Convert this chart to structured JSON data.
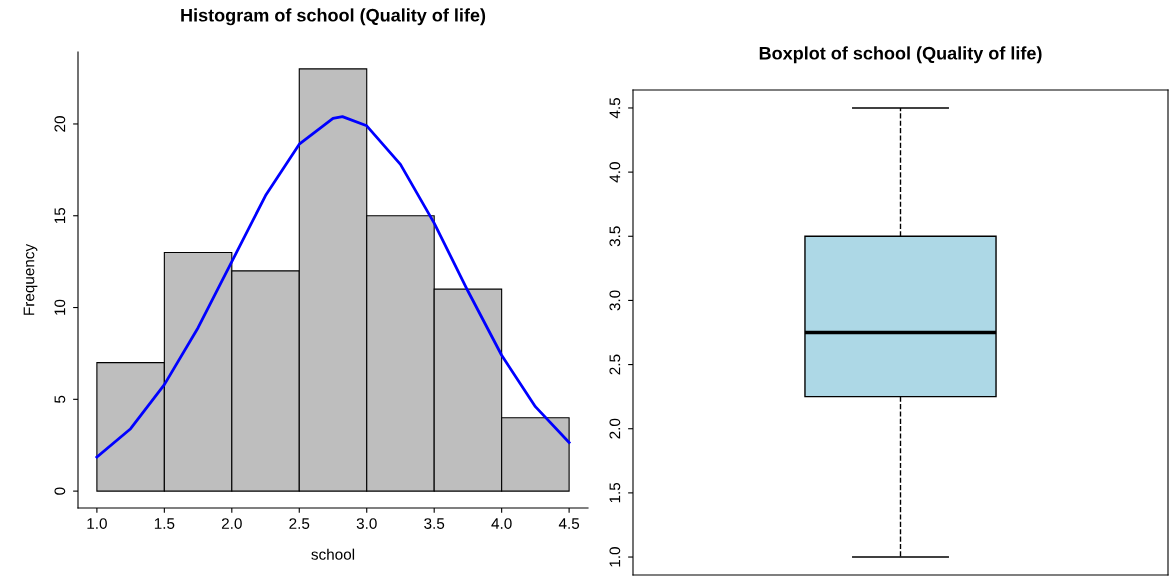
{
  "chart_data": [
    {
      "type": "histogram",
      "title": "Histogram of school (Quality of life)",
      "xlabel": "school",
      "ylabel": "Frequency",
      "bins": [
        1.0,
        1.5,
        2.0,
        2.5,
        3.0,
        3.5,
        4.0,
        4.5
      ],
      "values": [
        7,
        13,
        12,
        23,
        15,
        11,
        4
      ],
      "color": "#bebebe",
      "xlim": [
        0.86,
        4.64
      ],
      "ylim": [
        -0.92,
        23.92
      ],
      "xticks": [
        {
          "value": 1.0,
          "label": "1.0"
        },
        {
          "value": 1.5,
          "label": "1.5"
        },
        {
          "value": 2.0,
          "label": "2.0"
        },
        {
          "value": 2.5,
          "label": "2.5"
        },
        {
          "value": 3.0,
          "label": "3.0"
        },
        {
          "value": 3.5,
          "label": "3.5"
        },
        {
          "value": 4.0,
          "label": "4.0"
        },
        {
          "value": 4.5,
          "label": "4.5"
        }
      ],
      "yticks": [
        0,
        5,
        10,
        15,
        20
      ],
      "grid": false,
      "series": [
        {
          "type": "line",
          "color": "#0000ff",
          "x": [
            1.0,
            1.25,
            1.5,
            1.75,
            2.0,
            2.25,
            2.5,
            2.75,
            2.82,
            3.0,
            3.25,
            3.5,
            3.75,
            4.0,
            4.25,
            4.5
          ],
          "values": [
            1.85,
            3.4,
            5.8,
            8.9,
            12.5,
            16.1,
            18.9,
            20.3,
            20.4,
            19.9,
            17.8,
            14.6,
            10.9,
            7.4,
            4.6,
            2.65
          ]
        }
      ]
    },
    {
      "type": "box",
      "title": "Boxplot of school (Quality of life)",
      "categories": [
        null
      ],
      "boxes": [
        {
          "low": 1.0,
          "q1": 2.25,
          "median": 2.75,
          "q3": 3.5,
          "high": 4.5
        }
      ],
      "color": "#add8e6",
      "ylim": [
        0.86,
        4.64
      ],
      "yticks": [
        {
          "value": 1.0,
          "label": "1.0"
        },
        {
          "value": 1.5,
          "label": "1.5"
        },
        {
          "value": 2.0,
          "label": "2.0"
        },
        {
          "value": 2.5,
          "label": "2.5"
        },
        {
          "value": 3.0,
          "label": "3.0"
        },
        {
          "value": 3.5,
          "label": "3.5"
        },
        {
          "value": 4.0,
          "label": "4.0"
        },
        {
          "value": 4.5,
          "label": "4.5"
        }
      ],
      "tick_labels": "y",
      "grid": false
    }
  ]
}
